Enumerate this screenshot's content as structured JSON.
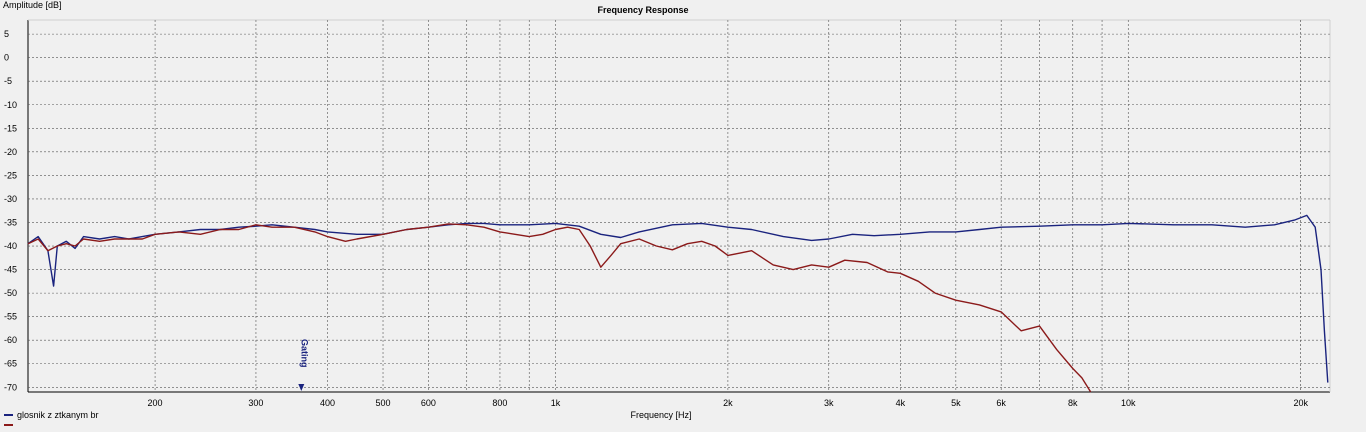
{
  "chart_data": {
    "type": "line",
    "title": "Frequency Response",
    "xlabel": "Frequency [Hz]",
    "ylabel": "Amplitude [dB]",
    "xscale": "log",
    "xlim": [
      120,
      22500
    ],
    "ylim": [
      -71,
      8
    ],
    "grid": true,
    "x_ticks": [
      {
        "v": 200,
        "label": "200"
      },
      {
        "v": 300,
        "label": "300"
      },
      {
        "v": 400,
        "label": "400"
      },
      {
        "v": 500,
        "label": "500"
      },
      {
        "v": 600,
        "label": "600"
      },
      {
        "v": 800,
        "label": "800"
      },
      {
        "v": 1000,
        "label": "1k"
      },
      {
        "v": 2000,
        "label": "2k"
      },
      {
        "v": 3000,
        "label": "3k"
      },
      {
        "v": 4000,
        "label": "4k"
      },
      {
        "v": 5000,
        "label": "5k"
      },
      {
        "v": 6000,
        "label": "6k"
      },
      {
        "v": 8000,
        "label": "8k"
      },
      {
        "v": 10000,
        "label": "10k"
      },
      {
        "v": 20000,
        "label": "20k"
      }
    ],
    "y_ticks": [
      {
        "v": 5,
        "label": "5"
      },
      {
        "v": 0,
        "label": "0"
      },
      {
        "v": -5,
        "label": "-5"
      },
      {
        "v": -10,
        "label": "-10"
      },
      {
        "v": -15,
        "label": "-15"
      },
      {
        "v": -20,
        "label": "-20"
      },
      {
        "v": -25,
        "label": "-25"
      },
      {
        "v": -30,
        "label": "-30"
      },
      {
        "v": -35,
        "label": "-35"
      },
      {
        "v": -40,
        "label": "-40"
      },
      {
        "v": -45,
        "label": "-45"
      },
      {
        "v": -50,
        "label": "-50"
      },
      {
        "v": -55,
        "label": "-55"
      },
      {
        "v": -60,
        "label": "-60"
      },
      {
        "v": -65,
        "label": "-65"
      },
      {
        "v": -70,
        "label": "-70"
      }
    ],
    "gating": {
      "label": "Gating",
      "x": 360
    },
    "series": [
      {
        "name": "glosnik z ztkanym br",
        "color": "#1a237e",
        "x": [
          120,
          125,
          130,
          133,
          135,
          140,
          145,
          150,
          160,
          170,
          180,
          190,
          200,
          220,
          240,
          260,
          280,
          300,
          320,
          350,
          380,
          400,
          450,
          500,
          550,
          600,
          650,
          700,
          750,
          800,
          900,
          1000,
          1100,
          1200,
          1300,
          1400,
          1600,
          1800,
          2000,
          2200,
          2500,
          2800,
          3000,
          3300,
          3600,
          4000,
          4500,
          5000,
          5500,
          6000,
          7000,
          8000,
          9000,
          10000,
          12000,
          14000,
          16000,
          18000,
          19500,
          20500,
          21200,
          21700,
          22000,
          22300
        ],
        "y": [
          -39.5,
          -38,
          -41,
          -48.5,
          -40,
          -39,
          -40.5,
          -38,
          -38.5,
          -38,
          -38.5,
          -38,
          -37.5,
          -37,
          -36.5,
          -36.5,
          -36,
          -35.8,
          -35.5,
          -36,
          -36.5,
          -37,
          -37.5,
          -37.5,
          -36.5,
          -36,
          -35.5,
          -35.2,
          -35.2,
          -35.5,
          -35.5,
          -35.2,
          -35.8,
          -37.5,
          -38.2,
          -37,
          -35.5,
          -35.2,
          -36,
          -36.5,
          -38,
          -38.8,
          -38.5,
          -37.5,
          -37.8,
          -37.5,
          -37,
          -37,
          -36.5,
          -36,
          -35.8,
          -35.5,
          -35.5,
          -35.2,
          -35.5,
          -35.5,
          -36,
          -35.5,
          -34.5,
          -33.5,
          -36,
          -45,
          -58,
          -69
        ]
      },
      {
        "name": "",
        "color": "#8b1a1a",
        "x": [
          120,
          125,
          130,
          135,
          140,
          145,
          150,
          160,
          170,
          180,
          190,
          200,
          220,
          240,
          260,
          280,
          300,
          320,
          350,
          380,
          400,
          430,
          450,
          500,
          550,
          600,
          650,
          700,
          750,
          800,
          850,
          900,
          950,
          1000,
          1050,
          1100,
          1150,
          1200,
          1250,
          1300,
          1400,
          1500,
          1600,
          1700,
          1800,
          1900,
          2000,
          2100,
          2200,
          2400,
          2600,
          2800,
          3000,
          3200,
          3500,
          3800,
          4000,
          4300,
          4600,
          5000,
          5500,
          6000,
          6500,
          7000,
          7500,
          8000,
          8300,
          8600
        ],
        "y": [
          -39.5,
          -38.5,
          -41,
          -40,
          -39.5,
          -40,
          -38.5,
          -39,
          -38.5,
          -38.5,
          -38.5,
          -37.5,
          -37,
          -37.5,
          -36.5,
          -36.5,
          -35.5,
          -36,
          -36,
          -37,
          -38,
          -39,
          -38.5,
          -37.5,
          -36.5,
          -36,
          -35.3,
          -35.5,
          -36,
          -37,
          -37.5,
          -38,
          -37.5,
          -36.5,
          -36,
          -36.5,
          -40,
          -44.5,
          -42,
          -39.5,
          -38.5,
          -40,
          -40.8,
          -39.5,
          -39,
          -40,
          -42,
          -41.5,
          -41,
          -44,
          -45,
          -44,
          -44.5,
          -43,
          -43.5,
          -45.5,
          -45.8,
          -47.5,
          -50,
          -51.5,
          -52.5,
          -54,
          -58,
          -57,
          -62,
          -66,
          -68,
          -71
        ]
      }
    ],
    "legend": {
      "position": "bottom-left",
      "entries": [
        "glosnik z ztkanym br",
        ""
      ]
    }
  }
}
